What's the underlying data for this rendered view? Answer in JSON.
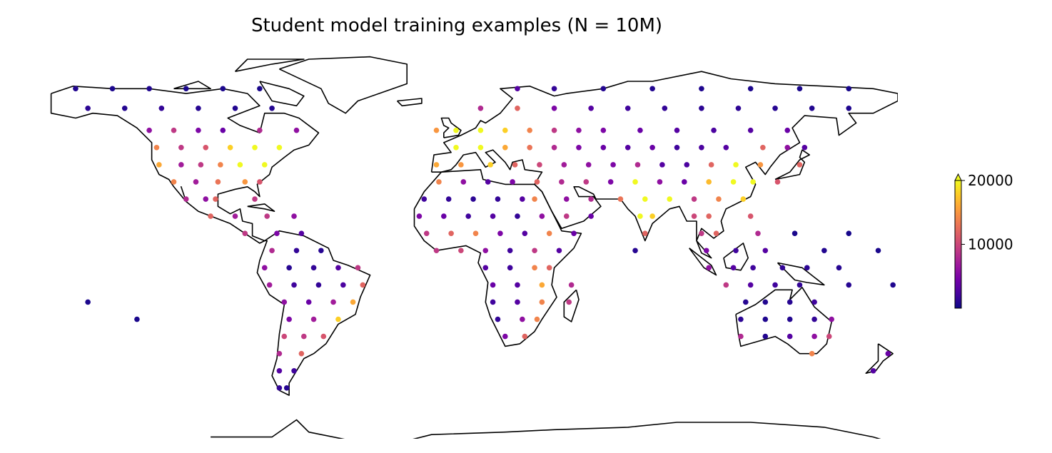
{
  "chart_data": {
    "type": "scatter",
    "title": "Student model training examples (N = 10M)",
    "colormap": "plasma",
    "clim": [
      0,
      20000
    ],
    "cticks": [
      10000,
      20000
    ],
    "extend": "max",
    "x": [
      -155,
      -140,
      -125,
      -110,
      -95,
      -80,
      25,
      40,
      60,
      80,
      100,
      120,
      140,
      160,
      -150,
      -135,
      -120,
      -105,
      -90,
      -75,
      10,
      25,
      40,
      55,
      70,
      85,
      100,
      115,
      130,
      145,
      160,
      -125,
      -115,
      -105,
      -95,
      -80,
      -65,
      -8,
      0,
      10,
      20,
      30,
      40,
      50,
      60,
      75,
      90,
      105,
      120,
      135,
      -122,
      -112,
      -102,
      -92,
      -82,
      -72,
      0,
      10,
      20,
      30,
      40,
      50,
      60,
      70,
      80,
      90,
      100,
      110,
      125,
      135,
      142,
      -121,
      -112,
      -104,
      -96,
      -88,
      -78,
      -8,
      2,
      14,
      24,
      34,
      44,
      54,
      64,
      74,
      84,
      94,
      104,
      114,
      124,
      140,
      -115,
      -106,
      -97,
      -86,
      -80,
      -7,
      3,
      13,
      23,
      33,
      43,
      53,
      63,
      73,
      83,
      93,
      103,
      113,
      121,
      131,
      -110,
      -102,
      -98,
      -82,
      -13,
      -3,
      7,
      17,
      27,
      32,
      45,
      55,
      67,
      77,
      87,
      97,
      107,
      117,
      -100,
      -90,
      -77,
      -66,
      -15,
      -5,
      5,
      15,
      25,
      35,
      45,
      55,
      75,
      80,
      97,
      103,
      120,
      -86,
      -73,
      -63,
      -12,
      -2,
      8,
      18,
      28,
      38,
      48,
      77,
      100,
      106,
      123,
      138,
      160,
      -75,
      -65,
      -55,
      -8,
      2,
      12,
      22,
      32,
      42,
      73,
      102,
      114,
      126,
      150,
      172,
      -78,
      -68,
      -58,
      -48,
      -40,
      12,
      22,
      32,
      38,
      103,
      113,
      121,
      133,
      143,
      156,
      -76,
      -66,
      -56,
      -46,
      -38,
      15,
      25,
      35,
      47,
      110,
      120,
      130,
      140,
      160,
      178,
      -70,
      -60,
      -50,
      -42,
      15,
      25,
      35,
      46,
      118,
      126,
      136,
      146,
      -150,
      -68,
      -58,
      -48,
      17,
      27,
      33,
      116,
      126,
      136,
      146,
      153,
      -130,
      -70,
      -62,
      -54,
      20,
      28,
      116,
      126,
      136,
      146,
      152,
      -72,
      -63,
      145,
      176,
      -72,
      -66,
      170,
      -72,
      -69
    ],
    "y": [
      70,
      70,
      70,
      70,
      70,
      70,
      70,
      70,
      70,
      70,
      70,
      70,
      70,
      70,
      62,
      62,
      62,
      62,
      62,
      62,
      62,
      62,
      62,
      62,
      62,
      62,
      62,
      62,
      62,
      62,
      62,
      53,
      53,
      53,
      53,
      53,
      53,
      53,
      53,
      53,
      53,
      53,
      53,
      53,
      53,
      53,
      53,
      53,
      53,
      53,
      46,
      46,
      46,
      46,
      46,
      46,
      46,
      46,
      46,
      46,
      46,
      46,
      46,
      46,
      46,
      46,
      46,
      46,
      46,
      46,
      46,
      39,
      39,
      39,
      39,
      39,
      39,
      39,
      39,
      39,
      39,
      39,
      39,
      39,
      39,
      39,
      39,
      39,
      39,
      39,
      39,
      39,
      32,
      32,
      32,
      32,
      32,
      32,
      32,
      32,
      32,
      32,
      32,
      32,
      32,
      32,
      32,
      32,
      32,
      32,
      32,
      32,
      25,
      25,
      25,
      25,
      25,
      25,
      25,
      25,
      25,
      25,
      25,
      25,
      25,
      25,
      25,
      25,
      25,
      25,
      18,
      18,
      18,
      18,
      18,
      18,
      18,
      18,
      18,
      18,
      18,
      18,
      18,
      18,
      18,
      18,
      18,
      11,
      11,
      11,
      11,
      11,
      11,
      11,
      11,
      11,
      11,
      11,
      11,
      11,
      11,
      11,
      11,
      4,
      4,
      4,
      4,
      4,
      4,
      4,
      4,
      4,
      4,
      4,
      4,
      4,
      4,
      4,
      -3,
      -3,
      -3,
      -3,
      -3,
      -3,
      -3,
      -3,
      -3,
      -3,
      -3,
      -3,
      -3,
      -3,
      -3,
      -10,
      -10,
      -10,
      -10,
      -10,
      -10,
      -10,
      -10,
      -10,
      -10,
      -10,
      -10,
      -10,
      -10,
      -10,
      -17,
      -17,
      -17,
      -17,
      -17,
      -17,
      -17,
      -17,
      -17,
      -17,
      -17,
      -17,
      -17,
      -24,
      -24,
      -24,
      -24,
      -24,
      -24,
      -24,
      -24,
      -24,
      -24,
      -24,
      -24,
      -31,
      -31,
      -31,
      -31,
      -31,
      -31,
      -31,
      -31,
      -31,
      -31,
      -38,
      -38,
      -38,
      -38,
      -45,
      -45,
      -45,
      -52,
      -52
    ],
    "values": [
      800,
      600,
      700,
      500,
      600,
      500,
      3000,
      1500,
      900,
      800,
      700,
      600,
      500,
      400,
      1200,
      900,
      1500,
      1000,
      800,
      900,
      8000,
      12000,
      5000,
      3000,
      2000,
      1500,
      1200,
      1300,
      1000,
      800,
      700,
      6000,
      9000,
      5000,
      4000,
      8000,
      6000,
      15000,
      20000,
      20000,
      18000,
      14000,
      9000,
      6000,
      5000,
      4000,
      3000,
      2500,
      3000,
      4000,
      14000,
      9000,
      11000,
      18000,
      20000,
      20000,
      20000,
      20000,
      16000,
      13000,
      8000,
      5000,
      4000,
      3000,
      4000,
      2000,
      2500,
      3000,
      12000,
      6000,
      3000,
      16000,
      7000,
      9000,
      14000,
      20000,
      20000,
      16000,
      15000,
      18000,
      12000,
      10000,
      7000,
      6000,
      5000,
      8000,
      3000,
      2500,
      12000,
      20000,
      15000,
      12000,
      14000,
      7000,
      13000,
      15000,
      11000,
      14000,
      6000,
      3000,
      5000,
      12000,
      8000,
      9000,
      5000,
      20000,
      6000,
      4000,
      17000,
      20000,
      20000,
      11000,
      8000,
      6000,
      12000,
      9000,
      2000,
      1500,
      1200,
      1500,
      3000,
      14000,
      6000,
      8000,
      13000,
      20000,
      20000,
      9000,
      14000,
      18000,
      12000,
      7000,
      9000,
      6000,
      5000,
      4000,
      2000,
      3000,
      1500,
      6000,
      9000,
      4000,
      20000,
      18000,
      10000,
      12000,
      11000,
      9000,
      5000,
      3000,
      9000,
      12000,
      14000,
      5000,
      3000,
      14000,
      4000,
      12000,
      9000,
      12000,
      8000,
      500,
      400,
      8000,
      1500,
      1000,
      9000,
      10000,
      6000,
      2000,
      9000,
      3000,
      1000,
      5000,
      2000,
      3000,
      800,
      500,
      6000,
      1000,
      1500,
      3000,
      9000,
      3000,
      2000,
      14000,
      12000,
      6000,
      3000,
      2000,
      1500,
      1200,
      1000,
      7000,
      2000,
      1500,
      2500,
      12000,
      4000,
      3000,
      16000,
      8000,
      9000,
      3000,
      2000,
      1500,
      1000,
      700,
      6000,
      4000,
      7000,
      16000,
      2000,
      3000,
      14000,
      9000,
      1000,
      800,
      1000,
      2000,
      600,
      5000,
      7000,
      18000,
      1500,
      6000,
      14000,
      1200,
      700,
      800,
      1500,
      6000,
      500,
      10000,
      9000,
      11000,
      5000,
      12000,
      8000,
      800,
      3000,
      6000,
      10000,
      8000,
      12000,
      14000,
      4000,
      3000,
      2000,
      3000,
      1500,
      1000
    ]
  }
}
